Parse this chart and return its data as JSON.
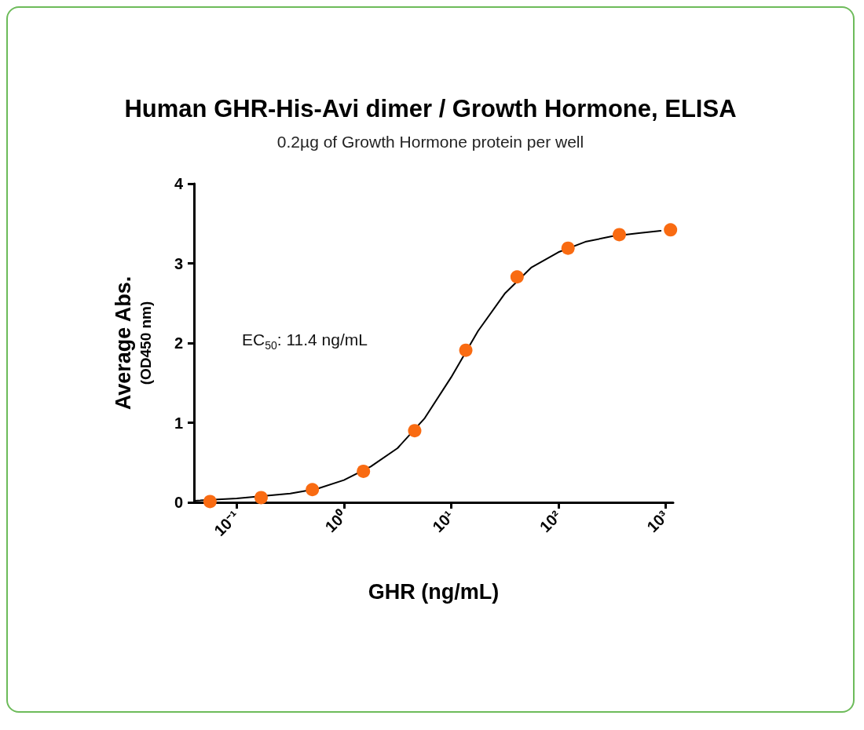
{
  "chart_data": {
    "type": "scatter",
    "title": "Human GHR-His-Avi dimer / Growth Hormone, ELISA",
    "subtitle": "0.2µg of Growth Hormone protein per well",
    "xlabel": "GHR (ng/mL)",
    "ylabel": "Average Abs.\n(OD450 nm)",
    "annotations": [
      "EC$_{50}$: 11.4 ng/mL"
    ],
    "log": "x",
    "grid": false,
    "marker": "circle",
    "xlim": [
      0.04,
      1175
    ],
    "xticks": [
      {
        "value": 0.1,
        "label": "10⁻¹"
      },
      {
        "value": 1,
        "label": "10⁰"
      },
      {
        "value": 10,
        "label": "10¹"
      },
      {
        "value": 100,
        "label": "10²"
      },
      {
        "value": 1000,
        "label": "10³"
      }
    ],
    "ylim": [
      0,
      4
    ],
    "yticks": [
      0,
      1,
      2,
      3,
      4
    ],
    "series": [
      {
        "color": "#f96b12",
        "x": [
          0.0564,
          0.169,
          0.508,
          1.52,
          4.57,
          13.7,
          41.2,
          123,
          370,
          1111
        ],
        "values": [
          0.01,
          0.06,
          0.16,
          0.39,
          0.9,
          1.91,
          2.83,
          3.19,
          3.36,
          3.42
        ]
      },
      {
        "type": "line",
        "color": "#000000",
        "marker": "none",
        "line_style": "solid",
        "x": [
          0.04,
          0.1,
          0.316,
          0.562,
          1,
          1.78,
          3.16,
          5.62,
          10,
          17.8,
          31.6,
          56.2,
          100,
          178,
          316,
          562,
          900
        ],
        "values": [
          0.02,
          0.05,
          0.11,
          0.17,
          0.28,
          0.45,
          0.68,
          1.05,
          1.57,
          2.15,
          2.62,
          2.95,
          3.14,
          3.27,
          3.34,
          3.38,
          3.41
        ]
      }
    ]
  }
}
